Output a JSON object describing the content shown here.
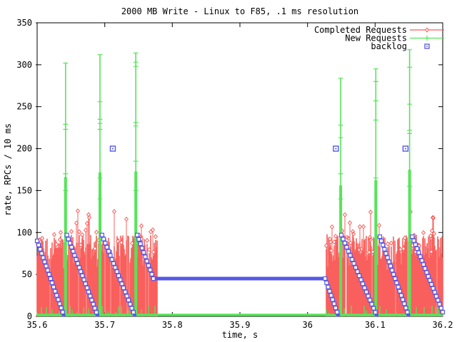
{
  "chart_data": {
    "type": "line",
    "title": "2000 MB Write - Linux to F85, .1 ms resolution",
    "xlabel": "time, s",
    "ylabel": "rate, RPCs / 10 ms",
    "xlim": [
      35.6,
      36.2
    ],
    "ylim": [
      0,
      350
    ],
    "xticks": [
      "35.6",
      "35.7",
      "35.8",
      "35.9",
      "36",
      "36.1",
      "36.2"
    ],
    "yticks": [
      "0",
      "50",
      "100",
      "150",
      "200",
      "250",
      "300",
      "350"
    ],
    "grid": false,
    "legend_position": "top-right-inside",
    "background_color": "#ffffff",
    "axis_color": "#000000",
    "series": [
      {
        "name": "Completed Requests",
        "color": "#f95f5c",
        "marker": "diamond",
        "style": "impulses",
        "bursts": [
          {
            "t_start": 35.6,
            "t_end": 35.778,
            "base_min": 52,
            "base_max": 98,
            "spike_min": 100,
            "spike_max": 127
          },
          {
            "t_start": 36.027,
            "t_end": 36.2,
            "base_min": 52,
            "base_max": 98,
            "spike_min": 100,
            "spike_max": 127
          }
        ]
      },
      {
        "name": "New Requests",
        "color": "#55e557",
        "marker": "plus",
        "style": "impulses",
        "baseline_rate": 1.5,
        "burst_spikes": [
          {
            "t": 35.642,
            "peak": 302,
            "tick_values": [
              150,
              170,
              223,
              229,
              302
            ]
          },
          {
            "t": 35.693,
            "peak": 312,
            "tick_values": [
              140,
              165,
              223,
              230,
              235,
              256,
              312
            ]
          },
          {
            "t": 35.746,
            "peak": 314,
            "tick_values": [
              150,
              185,
              227,
              231,
              298,
              303,
              314
            ]
          },
          {
            "t": 36.049,
            "peak": 284,
            "tick_values": [
              140,
              170,
              213,
              228,
              284
            ]
          },
          {
            "t": 36.101,
            "peak": 295,
            "tick_values": [
              165,
              234,
              257,
              280,
              295
            ]
          },
          {
            "t": 36.151,
            "peak": 318,
            "tick_values": [
              155,
              218,
              222,
              253,
              297,
              318
            ]
          }
        ]
      },
      {
        "name": "backlog",
        "color": "#5557e9",
        "marker": "square",
        "style": "points",
        "sawtooth_segments": [
          [
            [
              35.6,
              90
            ],
            [
              35.64,
              0
            ]
          ],
          [
            [
              35.644,
              97
            ],
            [
              35.69,
              0
            ]
          ],
          [
            [
              35.696,
              97
            ],
            [
              35.745,
              0
            ]
          ],
          [
            [
              35.748,
              97
            ],
            [
              35.772,
              45
            ],
            [
              36.026,
              45
            ],
            [
              36.046,
              0
            ]
          ],
          [
            [
              36.05,
              97
            ],
            [
              36.103,
              0
            ]
          ],
          [
            [
              36.107,
              95
            ],
            [
              36.15,
              0
            ]
          ],
          [
            [
              36.155,
              95
            ],
            [
              36.2,
              5
            ]
          ]
        ],
        "outlier_points": [
          [
            35.712,
            200
          ],
          [
            36.042,
            200
          ],
          [
            36.145,
            200
          ]
        ]
      }
    ]
  }
}
